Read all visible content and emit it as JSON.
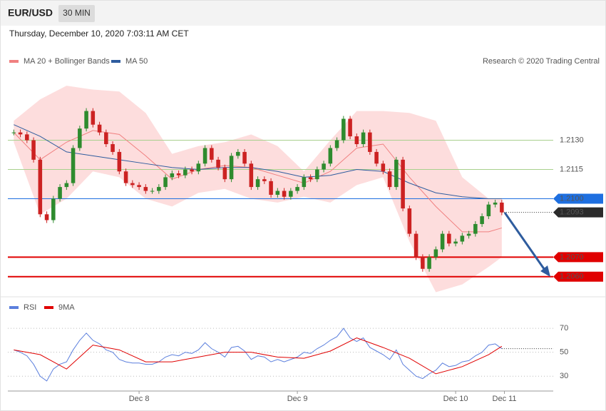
{
  "header": {
    "symbol": "EUR/USD",
    "interval": "30 MIN",
    "timestamp": "Thursday, December 10, 2020 7:03:11 AM CET"
  },
  "chart_data": [
    {
      "type": "candlestick",
      "credit": "Research © 2020 Trading Central",
      "xlim": [
        -19.9,
        62.8
      ],
      "xticks": [
        {
          "value": 0,
          "label": "Dec 8"
        },
        {
          "value": 24,
          "label": "Dec 9"
        },
        {
          "value": 48,
          "label": "Dec 10"
        },
        {
          "value": 55.4,
          "label": "Dec 11"
        }
      ],
      "ylim": [
        1.205,
        1.218
      ],
      "up_color": "#2e8b2e",
      "down_color": "#cc2222",
      "x": [
        -19,
        -18,
        -17,
        -16,
        -15,
        -14,
        -13,
        -12,
        -11,
        -10,
        -9,
        -8,
        -7,
        -6,
        -5,
        -4,
        -3,
        -2,
        -1,
        0,
        1,
        2,
        3,
        4,
        5,
        6,
        7,
        8,
        9,
        10,
        11,
        12,
        13,
        14,
        15,
        16,
        17,
        18,
        19,
        20,
        21,
        22,
        23,
        24,
        25,
        26,
        27,
        28,
        29,
        30,
        31,
        32,
        33,
        34,
        35,
        36,
        37,
        38,
        39,
        40,
        41,
        42,
        43,
        44,
        45,
        46,
        47,
        48,
        49,
        50,
        51,
        52,
        53,
        54,
        55
      ],
      "values": [
        1.2134,
        1.2133,
        1.213,
        1.212,
        1.2092,
        1.2089,
        1.21,
        1.2106,
        1.2108,
        1.2126,
        1.2136,
        1.2145,
        1.2138,
        1.2134,
        1.2128,
        1.2124,
        1.2114,
        1.2108,
        1.2107,
        1.2106,
        1.2104,
        1.2104,
        1.2106,
        1.2111,
        1.2113,
        1.2112,
        1.2115,
        1.2114,
        1.2118,
        1.2126,
        1.212,
        1.2116,
        1.211,
        1.2122,
        1.2124,
        1.2118,
        1.2106,
        1.211,
        1.2109,
        1.2102,
        1.2104,
        1.2101,
        1.2104,
        1.2106,
        1.2111,
        1.211,
        1.2115,
        1.2118,
        1.2126,
        1.213,
        1.2141,
        1.2132,
        1.2128,
        1.2134,
        1.2124,
        1.2118,
        1.2114,
        1.2106,
        1.212,
        1.2095,
        1.2082,
        1.207,
        1.2064,
        1.207,
        1.2074,
        1.2082,
        1.2077,
        1.2078,
        1.2081,
        1.2082,
        1.2087,
        1.2091,
        1.2097,
        1.2098,
        1.2093
      ],
      "indicators": [
        {
          "name": "MA 20 + Bollinger Bands",
          "color": "#f08080",
          "band_color": "#fdd9d9",
          "x": [
            -19,
            -15,
            -11,
            -7,
            -3,
            1,
            5,
            9,
            13,
            17,
            21,
            25,
            29,
            33,
            37,
            41,
            45,
            49,
            53,
            55
          ],
          "values": [
            1.2134,
            1.212,
            1.2129,
            1.2135,
            1.2133,
            1.2122,
            1.211,
            1.2115,
            1.2117,
            1.2116,
            1.2112,
            1.2108,
            1.2114,
            1.2126,
            1.2128,
            1.2111,
            1.2096,
            1.2083,
            1.2083,
            1.2085
          ],
          "upper": [
            1.214,
            1.2151,
            1.2158,
            1.2156,
            1.2155,
            1.2144,
            1.2123,
            1.2127,
            1.2129,
            1.2133,
            1.2127,
            1.2114,
            1.213,
            1.2145,
            1.2145,
            1.2144,
            1.214,
            1.2111,
            1.21,
            1.21
          ],
          "lower": [
            1.2129,
            1.2092,
            1.21,
            1.2114,
            1.2111,
            1.21,
            1.2096,
            1.2103,
            1.2105,
            1.21,
            1.2098,
            1.2101,
            1.2098,
            1.2107,
            1.2111,
            1.2078,
            1.2052,
            1.2056,
            1.2065,
            1.207
          ]
        },
        {
          "name": "MA 50",
          "color": "#2e5c9e",
          "x": [
            -19,
            -15,
            -11,
            -7,
            -3,
            1,
            5,
            9,
            13,
            17,
            21,
            25,
            29,
            33,
            37,
            41,
            45,
            49,
            53,
            55
          ],
          "values": [
            1.2138,
            1.2132,
            1.2124,
            1.2122,
            1.212,
            1.2118,
            1.2116,
            1.2115,
            1.2116,
            1.2116,
            1.2114,
            1.2111,
            1.2112,
            1.2115,
            1.2114,
            1.2108,
            1.2103,
            1.2101,
            1.21,
            1.21
          ]
        }
      ],
      "levels": [
        {
          "value": 1.213,
          "label": "1.2130",
          "color": "#a8d08d",
          "style": "line"
        },
        {
          "value": 1.2115,
          "label": "1.2115",
          "color": "#a8d08d",
          "style": "line"
        },
        {
          "value": 1.21,
          "label": "1.2100",
          "color": "#1e6fe0",
          "style": "box"
        },
        {
          "value": 1.2093,
          "label": "1.2093",
          "color": "#2b2b2b",
          "style": "dotted"
        },
        {
          "value": 1.207,
          "label": "1.2070",
          "color": "#e00000",
          "style": "box"
        },
        {
          "value": 1.206,
          "label": "1.2060",
          "color": "#e00000",
          "style": "box"
        }
      ]
    },
    {
      "type": "line",
      "xlim": [
        -19.9,
        62.8
      ],
      "ylim": [
        20,
        82
      ],
      "yticks": [
        30,
        50,
        70
      ],
      "series": [
        {
          "name": "RSI",
          "color": "#5b7fdd",
          "x": [
            -19,
            -18,
            -17,
            -16,
            -15,
            -14,
            -13,
            -12,
            -11,
            -10,
            -9,
            -8,
            -7,
            -6,
            -5,
            -4,
            -3,
            -2,
            -1,
            0,
            1,
            2,
            3,
            4,
            5,
            6,
            7,
            8,
            9,
            10,
            11,
            12,
            13,
            14,
            15,
            16,
            17,
            18,
            19,
            20,
            21,
            22,
            23,
            24,
            25,
            26,
            27,
            28,
            29,
            30,
            31,
            32,
            33,
            34,
            35,
            36,
            37,
            38,
            39,
            40,
            41,
            42,
            43,
            44,
            45,
            46,
            47,
            48,
            49,
            50,
            51,
            52,
            53,
            54,
            55
          ],
          "values": [
            52,
            50,
            47,
            40,
            30,
            26,
            36,
            40,
            42,
            52,
            60,
            66,
            60,
            57,
            52,
            50,
            44,
            42,
            41,
            41,
            40,
            40,
            42,
            46,
            48,
            47,
            50,
            49,
            52,
            58,
            53,
            50,
            46,
            54,
            55,
            51,
            44,
            47,
            46,
            42,
            44,
            42,
            44,
            46,
            50,
            49,
            53,
            56,
            60,
            63,
            70,
            62,
            59,
            62,
            54,
            51,
            48,
            44,
            52,
            40,
            35,
            30,
            28,
            32,
            35,
            41,
            38,
            39,
            42,
            43,
            47,
            50,
            56,
            57,
            53
          ]
        },
        {
          "name": "9MA",
          "color": "#e00000",
          "x": [
            -19,
            -15,
            -11,
            -7,
            -3,
            1,
            5,
            9,
            13,
            17,
            21,
            25,
            29,
            33,
            37,
            41,
            45,
            49,
            53,
            55
          ],
          "values": [
            52,
            48,
            36,
            56,
            52,
            42,
            42,
            46,
            50,
            50,
            46,
            45,
            51,
            62,
            54,
            45,
            32,
            38,
            48,
            55
          ]
        }
      ]
    }
  ]
}
